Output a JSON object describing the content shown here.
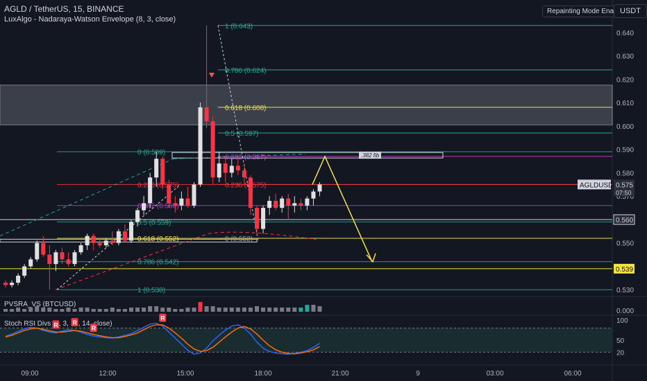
{
  "header": {
    "symbol_title": "AGLD / TetherUS, 15, BINANCE",
    "indicator": "LuxAlgo - Nadaraya-Watson Envelope (8, 3, close)",
    "repaint_button": "Repainting Mode Enabled",
    "currency_button": "USDT"
  },
  "colors": {
    "background": "#131722",
    "bull": "#e0e0e0",
    "bear": "#f23645",
    "teal": "#26a69a",
    "fib_cyan": "#22ab94",
    "fib_yellow": "#f5e142",
    "fib_purple": "#b040c0"
  },
  "price_axis": {
    "ticks": [
      "0.640",
      "0.630",
      "0.620",
      "0.610",
      "0.600",
      "0.590",
      "0.580",
      "0.570",
      "0.560",
      "0.550",
      "0.540",
      "0.530",
      "0.000"
    ],
    "price_badge": "0.575",
    "time_left": "07:50",
    "ticker_badge": "AGLDUSDT",
    "level_badge_1": "0.560",
    "level_badge_2": "0.539"
  },
  "time_axis": {
    "ticks": [
      "09:00",
      "12:00",
      "15:00",
      "18:00",
      "21:00",
      "9",
      "03:00",
      "06:00"
    ]
  },
  "chart_data": {
    "type": "candlestick",
    "ylim": [
      0.528,
      0.645
    ],
    "candles": [
      {
        "o": 0.533,
        "h": 0.534,
        "l": 0.531,
        "c": 0.532
      },
      {
        "o": 0.532,
        "h": 0.534,
        "l": 0.531,
        "c": 0.533
      },
      {
        "o": 0.533,
        "h": 0.537,
        "l": 0.532,
        "c": 0.536
      },
      {
        "o": 0.536,
        "h": 0.541,
        "l": 0.535,
        "c": 0.54
      },
      {
        "o": 0.54,
        "h": 0.544,
        "l": 0.539,
        "c": 0.543
      },
      {
        "o": 0.543,
        "h": 0.551,
        "l": 0.542,
        "c": 0.55
      },
      {
        "o": 0.55,
        "h": 0.553,
        "l": 0.544,
        "c": 0.545
      },
      {
        "o": 0.545,
        "h": 0.549,
        "l": 0.53,
        "c": 0.541
      },
      {
        "o": 0.541,
        "h": 0.547,
        "l": 0.538,
        "c": 0.546
      },
      {
        "o": 0.546,
        "h": 0.548,
        "l": 0.541,
        "c": 0.543
      },
      {
        "o": 0.543,
        "h": 0.546,
        "l": 0.54,
        "c": 0.541
      },
      {
        "o": 0.541,
        "h": 0.547,
        "l": 0.54,
        "c": 0.546
      },
      {
        "o": 0.546,
        "h": 0.55,
        "l": 0.545,
        "c": 0.549
      },
      {
        "o": 0.549,
        "h": 0.554,
        "l": 0.547,
        "c": 0.553
      },
      {
        "o": 0.553,
        "h": 0.554,
        "l": 0.547,
        "c": 0.55
      },
      {
        "o": 0.55,
        "h": 0.552,
        "l": 0.548,
        "c": 0.549
      },
      {
        "o": 0.549,
        "h": 0.552,
        "l": 0.548,
        "c": 0.551
      },
      {
        "o": 0.551,
        "h": 0.555,
        "l": 0.549,
        "c": 0.55
      },
      {
        "o": 0.55,
        "h": 0.556,
        "l": 0.549,
        "c": 0.555
      },
      {
        "o": 0.555,
        "h": 0.558,
        "l": 0.55,
        "c": 0.551
      },
      {
        "o": 0.551,
        "h": 0.56,
        "l": 0.55,
        "c": 0.559
      },
      {
        "o": 0.559,
        "h": 0.565,
        "l": 0.557,
        "c": 0.564
      },
      {
        "o": 0.564,
        "h": 0.57,
        "l": 0.562,
        "c": 0.567
      },
      {
        "o": 0.567,
        "h": 0.58,
        "l": 0.565,
        "c": 0.578
      },
      {
        "o": 0.578,
        "h": 0.589,
        "l": 0.574,
        "c": 0.586
      },
      {
        "o": 0.586,
        "h": 0.587,
        "l": 0.573,
        "c": 0.575
      },
      {
        "o": 0.575,
        "h": 0.577,
        "l": 0.565,
        "c": 0.567
      },
      {
        "o": 0.567,
        "h": 0.57,
        "l": 0.563,
        "c": 0.566
      },
      {
        "o": 0.566,
        "h": 0.572,
        "l": 0.564,
        "c": 0.569
      },
      {
        "o": 0.569,
        "h": 0.574,
        "l": 0.565,
        "c": 0.566
      },
      {
        "o": 0.566,
        "h": 0.576,
        "l": 0.565,
        "c": 0.575
      },
      {
        "o": 0.575,
        "h": 0.61,
        "l": 0.574,
        "c": 0.608
      },
      {
        "o": 0.608,
        "h": 0.643,
        "l": 0.599,
        "c": 0.602
      },
      {
        "o": 0.602,
        "h": 0.604,
        "l": 0.575,
        "c": 0.578
      },
      {
        "o": 0.578,
        "h": 0.589,
        "l": 0.576,
        "c": 0.584
      },
      {
        "o": 0.584,
        "h": 0.587,
        "l": 0.576,
        "c": 0.58
      },
      {
        "o": 0.58,
        "h": 0.586,
        "l": 0.578,
        "c": 0.583
      },
      {
        "o": 0.583,
        "h": 0.587,
        "l": 0.579,
        "c": 0.581
      },
      {
        "o": 0.581,
        "h": 0.584,
        "l": 0.575,
        "c": 0.578
      },
      {
        "o": 0.578,
        "h": 0.579,
        "l": 0.562,
        "c": 0.565
      },
      {
        "o": 0.565,
        "h": 0.566,
        "l": 0.553,
        "c": 0.556
      },
      {
        "o": 0.556,
        "h": 0.566,
        "l": 0.554,
        "c": 0.565
      },
      {
        "o": 0.565,
        "h": 0.57,
        "l": 0.562,
        "c": 0.568
      },
      {
        "o": 0.568,
        "h": 0.571,
        "l": 0.564,
        "c": 0.565
      },
      {
        "o": 0.565,
        "h": 0.57,
        "l": 0.563,
        "c": 0.569
      },
      {
        "o": 0.569,
        "h": 0.571,
        "l": 0.56,
        "c": 0.566
      },
      {
        "o": 0.566,
        "h": 0.57,
        "l": 0.563,
        "c": 0.567
      },
      {
        "o": 0.567,
        "h": 0.569,
        "l": 0.564,
        "c": 0.566
      },
      {
        "o": 0.566,
        "h": 0.57,
        "l": 0.564,
        "c": 0.569
      },
      {
        "o": 0.569,
        "h": 0.573,
        "l": 0.566,
        "c": 0.572
      },
      {
        "o": 0.572,
        "h": 0.576,
        "l": 0.57,
        "c": 0.575
      }
    ],
    "supply_zone": [
      0.6005,
      0.6175
    ],
    "fib_levels_upper": [
      {
        "label": "1 (0.643)",
        "price": 0.643,
        "color": "#22ab94"
      },
      {
        "label": "0.786 (0.624)",
        "price": 0.624,
        "color": "#22ab94"
      },
      {
        "label": "0.618 (0.608)",
        "price": 0.608,
        "color": "#f5e142"
      },
      {
        "label": "0.5 (0.597)",
        "price": 0.597,
        "color": "#22ab94"
      },
      {
        "label": "0.382 (0.587)",
        "price": 0.587,
        "color": "#b040c0"
      },
      {
        "label": "0.236 (0.575)",
        "price": 0.575,
        "color": "#f23645"
      },
      {
        "label": "0 (0.552)",
        "price": 0.552,
        "color": "#9598a1"
      }
    ],
    "fib_levels_lower": [
      {
        "label": "0 (0.589)",
        "price": 0.589,
        "color": "#22ab94"
      },
      {
        "label": "0.236 (0.575)",
        "price": 0.575,
        "color": "#f23645"
      },
      {
        "label": "0.382 (0.566)",
        "price": 0.566,
        "color": "#b040c0"
      },
      {
        "label": "0.5 (0.559)",
        "price": 0.559,
        "color": "#22ab94"
      },
      {
        "label": "0.618 (0.552)",
        "price": 0.552,
        "color": "#f5e142"
      },
      {
        "label": "0.786 (0.542)",
        "price": 0.542,
        "color": "#22ab94"
      },
      {
        "label": "1 (0.530)",
        "price": 0.53,
        "color": "#22ab94"
      }
    ],
    "fib_382_label": ".382 fib",
    "horizontal_levels": [
      0.56,
      0.539,
      0.551
    ],
    "projection": [
      0.575,
      0.587,
      0.542
    ],
    "volume": {
      "name": "PVSRA_VS (BTCUSD)",
      "values": [
        2,
        2,
        3,
        2,
        3,
        4,
        3,
        3,
        2,
        2,
        3,
        2,
        3,
        3,
        2,
        2,
        2,
        3,
        2,
        2,
        3,
        3,
        3,
        4,
        4,
        3,
        3,
        2,
        2,
        3,
        3,
        7,
        4,
        4,
        3,
        3,
        3,
        3,
        3,
        3,
        4,
        3,
        3,
        3,
        3,
        3,
        3,
        3,
        5,
        5,
        4
      ]
    },
    "stoch_rsi": {
      "name": "Stoch RSI Divs (3, 3, 14, 14, close)",
      "ylim": [
        0,
        100
      ],
      "ticks": [
        "100",
        "50",
        "20"
      ],
      "k": [
        60,
        65,
        72,
        78,
        82,
        80,
        74,
        70,
        68,
        72,
        76,
        74,
        70,
        64,
        60,
        58,
        56,
        55,
        58,
        62,
        66,
        74,
        82,
        90,
        92,
        85,
        70,
        55,
        40,
        25,
        15,
        18,
        30,
        48,
        62,
        75,
        85,
        88,
        80,
        65,
        45,
        30,
        22,
        18,
        16,
        15,
        17,
        20,
        24,
        32,
        42
      ],
      "d": [
        58,
        62,
        68,
        74,
        78,
        80,
        77,
        73,
        70,
        70,
        72,
        74,
        72,
        68,
        64,
        61,
        58,
        56,
        56,
        59,
        63,
        68,
        76,
        84,
        88,
        88,
        80,
        68,
        55,
        40,
        28,
        22,
        24,
        32,
        45,
        58,
        70,
        80,
        84,
        78,
        65,
        50,
        36,
        26,
        20,
        17,
        16,
        18,
        21,
        26,
        34
      ],
      "divergence_marker": "R",
      "marker_indices": [
        8,
        11,
        14,
        25
      ]
    }
  }
}
